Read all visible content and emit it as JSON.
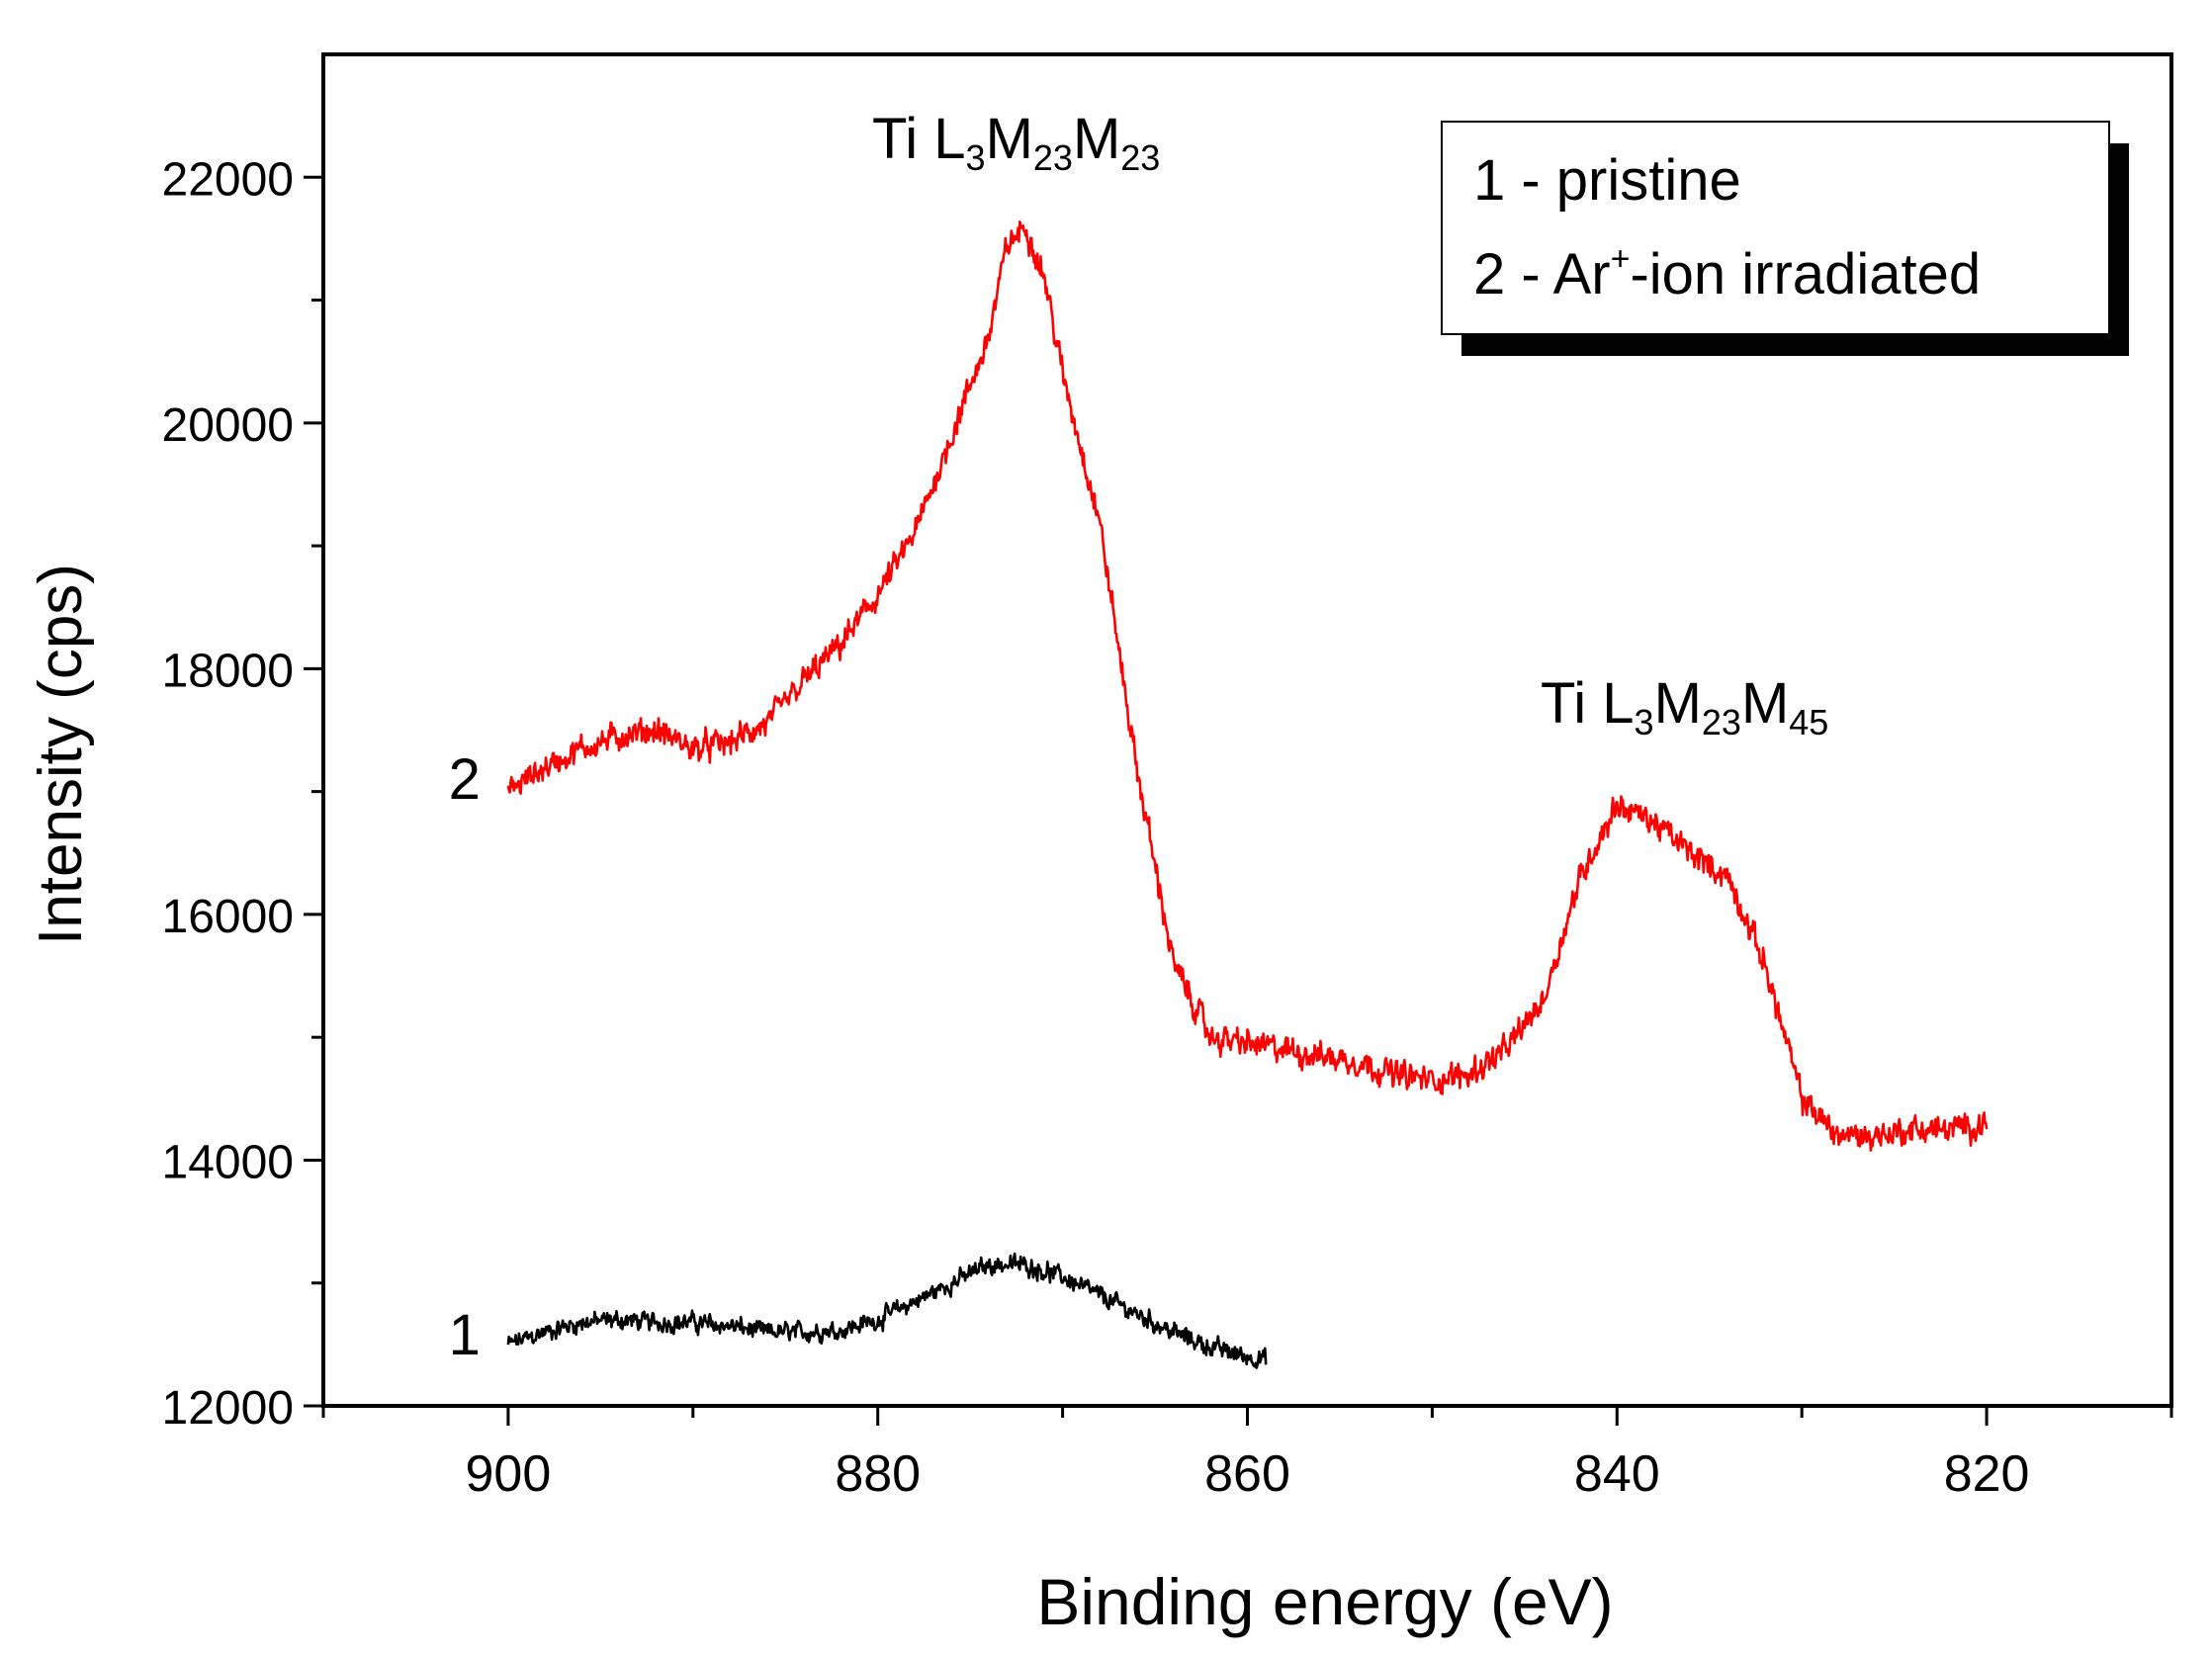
{
  "chart_data": {
    "type": "line",
    "xlabel": "Binding energy (eV)",
    "ylabel": "Intensity (cps)",
    "xlim": [
      910,
      810
    ],
    "ylim": [
      12000,
      23000
    ],
    "x_reversed": true,
    "x_ticks": [
      900,
      880,
      860,
      840,
      820
    ],
    "x_ticks_minor": [
      910,
      890,
      870,
      850,
      830,
      810
    ],
    "y_ticks": [
      12000,
      14000,
      16000,
      18000,
      20000,
      22000
    ],
    "y_ticks_minor": [
      13000,
      15000,
      17000,
      19000,
      21000
    ],
    "grid": false,
    "legend_position": "top-right",
    "legend": [
      {
        "marker": "1",
        "text": "1 - pristine"
      },
      {
        "marker": "2",
        "text_before": "2 - Ar",
        "superscript": "+",
        "text_after": "-ion irradiated"
      }
    ],
    "annotations": [
      {
        "id": "peak1",
        "x": 871,
        "y": 22300,
        "base": "Ti L",
        "sub1": "3",
        "mid": "M",
        "sub2": "23",
        "end": "M",
        "sub3": "23"
      },
      {
        "id": "peak2",
        "x": 836,
        "y": 17750,
        "base": "Ti L",
        "sub1": "3",
        "mid": "M",
        "sub2": "23",
        "end": "M",
        "sub3": "45"
      }
    ],
    "series": [
      {
        "label": "1",
        "color": "#000000",
        "noise": 90,
        "label_x": 901.5,
        "label_y": 12580,
        "x": [
          900,
          898,
          896,
          894,
          892,
          890,
          888,
          886,
          884,
          882,
          880,
          878,
          876,
          874,
          872,
          870,
          868,
          866,
          864,
          862,
          860,
          859
        ],
        "values": [
          12500,
          12600,
          12680,
          12700,
          12680,
          12680,
          12650,
          12600,
          12600,
          12620,
          12700,
          12850,
          13000,
          13150,
          13150,
          13050,
          12900,
          12750,
          12600,
          12480,
          12400,
          12380
        ]
      },
      {
        "label": "2",
        "color": "#ff0000",
        "noise": 130,
        "label_x": 901.5,
        "label_y": 17100,
        "x": [
          900,
          898,
          896,
          894,
          892,
          890,
          888,
          886,
          884,
          882,
          880,
          878,
          876,
          874,
          873,
          872,
          871,
          870,
          868,
          866,
          864,
          862,
          860,
          858,
          856,
          854,
          852,
          850,
          848,
          846,
          844,
          842,
          840,
          838,
          836,
          834,
          832,
          830,
          828,
          826,
          824,
          822,
          820
        ],
        "values": [
          17000,
          17200,
          17350,
          17450,
          17500,
          17350,
          17400,
          17550,
          17900,
          18200,
          18600,
          19100,
          19900,
          20700,
          21450,
          21600,
          21200,
          20400,
          19200,
          17200,
          15600,
          15000,
          14950,
          14900,
          14850,
          14800,
          14700,
          14650,
          14700,
          14900,
          15300,
          16300,
          16900,
          16750,
          16500,
          16300,
          15600,
          14500,
          14200,
          14200,
          14250,
          14250,
          14300
        ]
      }
    ]
  }
}
